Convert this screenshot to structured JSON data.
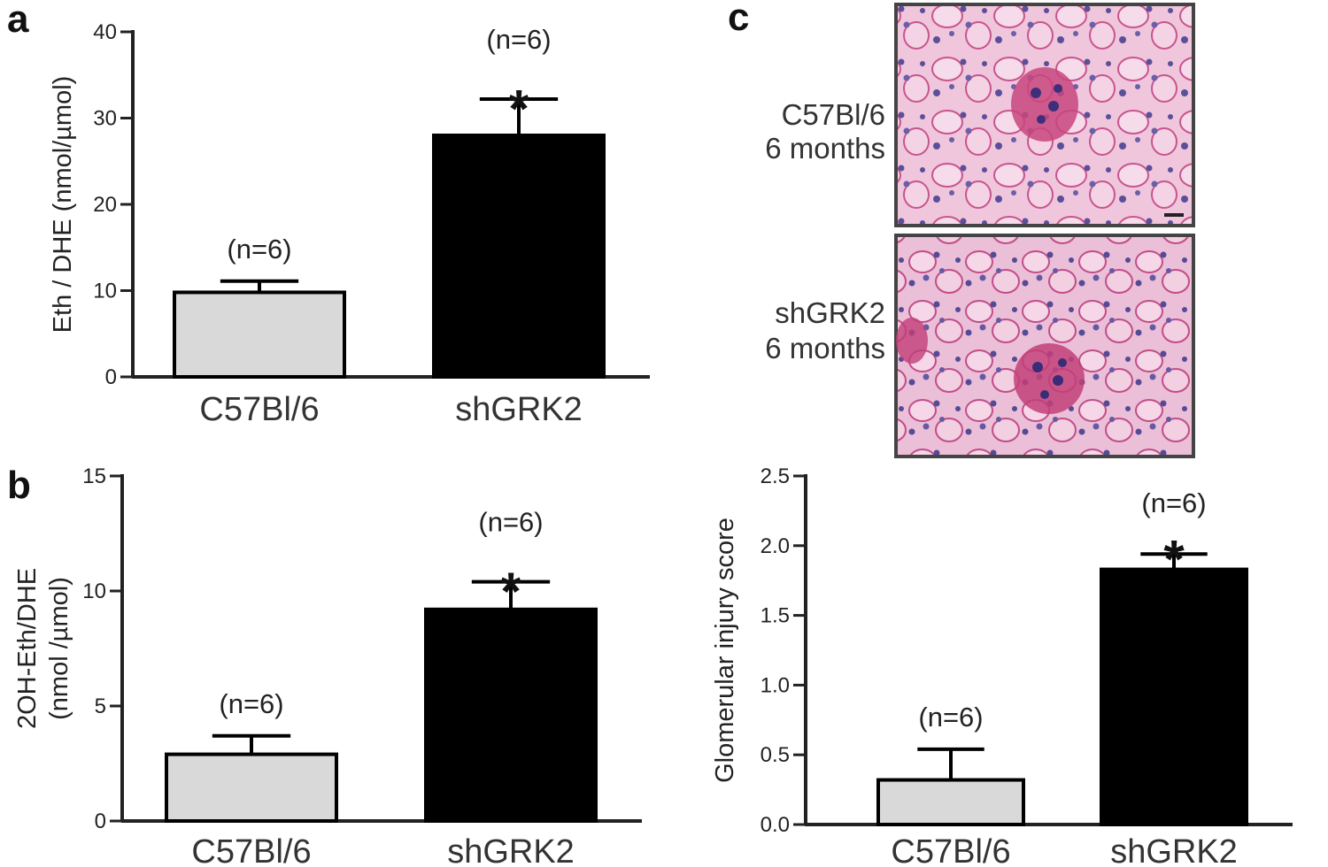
{
  "figure": {
    "panel_a": "a",
    "panel_b": "b",
    "panel_c": "c",
    "micrographs": [
      {
        "line1": "C57Bl/6",
        "line2": "6 months",
        "tone": "#e8b8d2"
      },
      {
        "line1": "shGRK2",
        "line2": "6 months",
        "tone": "#e3aacb"
      }
    ],
    "colors": {
      "control": "#d9d9d9",
      "treated": "#000000",
      "axis": "#222222"
    }
  },
  "chart_data": [
    {
      "type": "bar",
      "panel": "a",
      "categories": [
        "C57Bl/6",
        "shGRK2"
      ],
      "values": [
        9.8,
        28.0
      ],
      "errors": [
        1.3,
        4.2
      ],
      "annotations": [
        "(n=6)",
        "(n=6)"
      ],
      "significance": [
        "",
        "*"
      ],
      "ylabel": "Eth / DHE (nmol/µmol)",
      "ylabel_lines": [
        "Eth / DHE (nmol/µmol)"
      ],
      "ylim": [
        0,
        40
      ],
      "yticks": [
        0,
        10,
        20,
        30,
        40
      ],
      "ytick_labels": [
        "0",
        "10",
        "20",
        "30",
        "40"
      ]
    },
    {
      "type": "bar",
      "panel": "b",
      "categories": [
        "C57Bl/6",
        "shGRK2"
      ],
      "values": [
        2.9,
        9.2
      ],
      "errors": [
        0.8,
        1.2
      ],
      "annotations": [
        "(n=6)",
        "(n=6)"
      ],
      "significance": [
        "",
        "*"
      ],
      "ylabel": "2OH-Eth/DHE (nmol /µmol)",
      "ylabel_lines": [
        "2OH-Eth/DHE",
        "(nmol /µmol)"
      ],
      "ylim": [
        0,
        15
      ],
      "yticks": [
        0,
        5,
        10,
        15
      ],
      "ytick_labels": [
        "0",
        "5",
        "10",
        "15"
      ]
    },
    {
      "type": "bar",
      "panel": "c",
      "categories": [
        "C57Bl/6",
        "shGRK2"
      ],
      "values": [
        0.32,
        1.83
      ],
      "errors": [
        0.22,
        0.11
      ],
      "annotations": [
        "(n=6)",
        "(n=6)"
      ],
      "significance": [
        "",
        "*"
      ],
      "ylabel": "Glomerular injury score",
      "ylabel_lines": [
        "Glomerular injury score"
      ],
      "ylim": [
        0,
        2.5
      ],
      "yticks": [
        0,
        0.5,
        1.0,
        1.5,
        2.0,
        2.5
      ],
      "ytick_labels": [
        "0.0",
        "0.5",
        "1.0",
        "1.5",
        "2.0",
        "2.5"
      ]
    }
  ]
}
